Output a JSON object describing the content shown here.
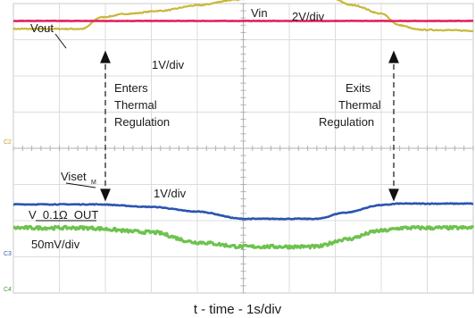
{
  "chart_data": {
    "type": "line",
    "title": "",
    "xlabel": "t - time - 1s/div",
    "ylabel": "",
    "grid": true,
    "x_divisions": 10,
    "y_divisions": 8,
    "series": [
      {
        "name": "Vin",
        "scale": "2V/div",
        "color": "#c8b83a",
        "x": [
          0,
          1.5,
          1.9,
          2.5,
          3.2,
          4.0,
          4.8,
          5.4,
          6.0,
          6.8,
          7.4,
          8.0,
          8.4,
          8.8,
          9.2,
          10
        ],
        "y": [
          3.3,
          3.3,
          3.62,
          3.72,
          3.8,
          3.95,
          4.1,
          4.22,
          4.25,
          4.2,
          3.95,
          3.72,
          3.4,
          3.28,
          3.27,
          3.25
        ]
      },
      {
        "name": "Vout",
        "scale": "1V/div",
        "color": "#e0245e",
        "x": [
          0,
          10
        ],
        "y": [
          3.52,
          3.52
        ]
      },
      {
        "name": "Viset",
        "scale": "1V/div",
        "color": "#2a55b0",
        "x": [
          0,
          1.8,
          3.0,
          4.0,
          5.0,
          6.6,
          7.2,
          8.0,
          8.4,
          10
        ],
        "y": [
          -1.55,
          -1.55,
          -1.62,
          -1.75,
          -1.95,
          -1.95,
          -1.78,
          -1.57,
          -1.53,
          -1.53
        ]
      },
      {
        "name": "V_0.1Ω_OUT",
        "scale": "50mV/div",
        "color": "#6ec24e",
        "x": [
          0,
          1.5,
          3.0,
          4.0,
          5.0,
          6.6,
          7.2,
          8.0,
          8.5,
          10
        ],
        "y": [
          -2.2,
          -2.2,
          -2.32,
          -2.6,
          -2.72,
          -2.72,
          -2.52,
          -2.28,
          -2.2,
          -2.2
        ]
      }
    ],
    "annotations": {
      "enters": "Enters\nThermal\nRegulation",
      "exits": "Exits\nThermal\nRegulation"
    },
    "channel_markers": [
      "C2",
      "C3",
      "C4"
    ]
  },
  "labels": {
    "vout": "Vout",
    "vin": "Vin",
    "vin_scale": "2V/div",
    "vout_scale": "1V/div",
    "enters": [
      "Enters",
      "Thermal",
      "Regulation"
    ],
    "exits": [
      "Exits",
      "Thermal",
      "Regulation"
    ],
    "viset": "Viset",
    "viset_sub": "M",
    "viset_scale": "1V/div",
    "vsense": "V_0.1Ω_OUT",
    "vsense_scale": "50mV/div",
    "xlabel": "t - time - 1s/div"
  }
}
